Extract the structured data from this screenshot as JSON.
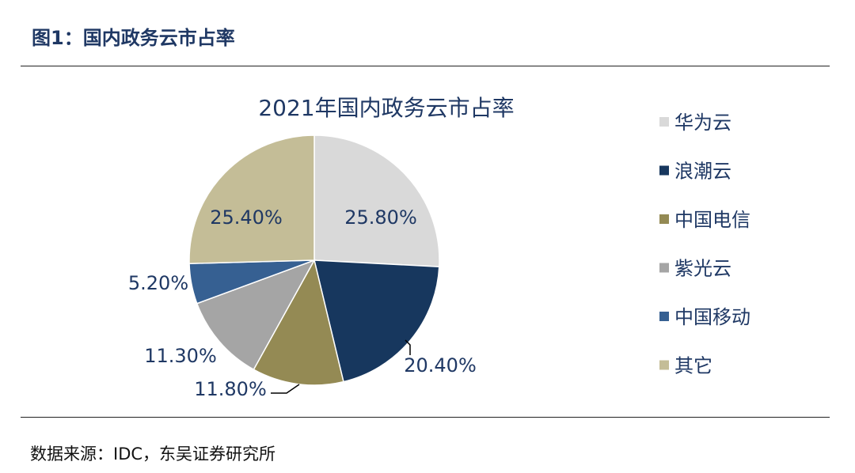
{
  "figure": {
    "title": "图1：国内政务云市占率",
    "source": "数据来源：IDC，东吴证券研究所"
  },
  "chart_data": {
    "type": "pie",
    "title": "2021年国内政务云市占率",
    "unit": "%",
    "legend_position": "right",
    "slices": [
      {
        "label": "华为云",
        "value": 25.8,
        "display": "25.80%",
        "color": "#d9d9d9"
      },
      {
        "label": "浪潮云",
        "value": 20.4,
        "display": "20.40%",
        "color": "#17375e"
      },
      {
        "label": "中国电信",
        "value": 11.8,
        "display": "11.80%",
        "color": "#948a54"
      },
      {
        "label": "紫光云",
        "value": 11.3,
        "display": "11.30%",
        "color": "#a5a5a5"
      },
      {
        "label": "中国移动",
        "value": 5.2,
        "display": "5.20%",
        "color": "#366092"
      },
      {
        "label": "其它",
        "value": 25.4,
        "display": "25.40%",
        "color": "#c4bd97"
      }
    ]
  }
}
